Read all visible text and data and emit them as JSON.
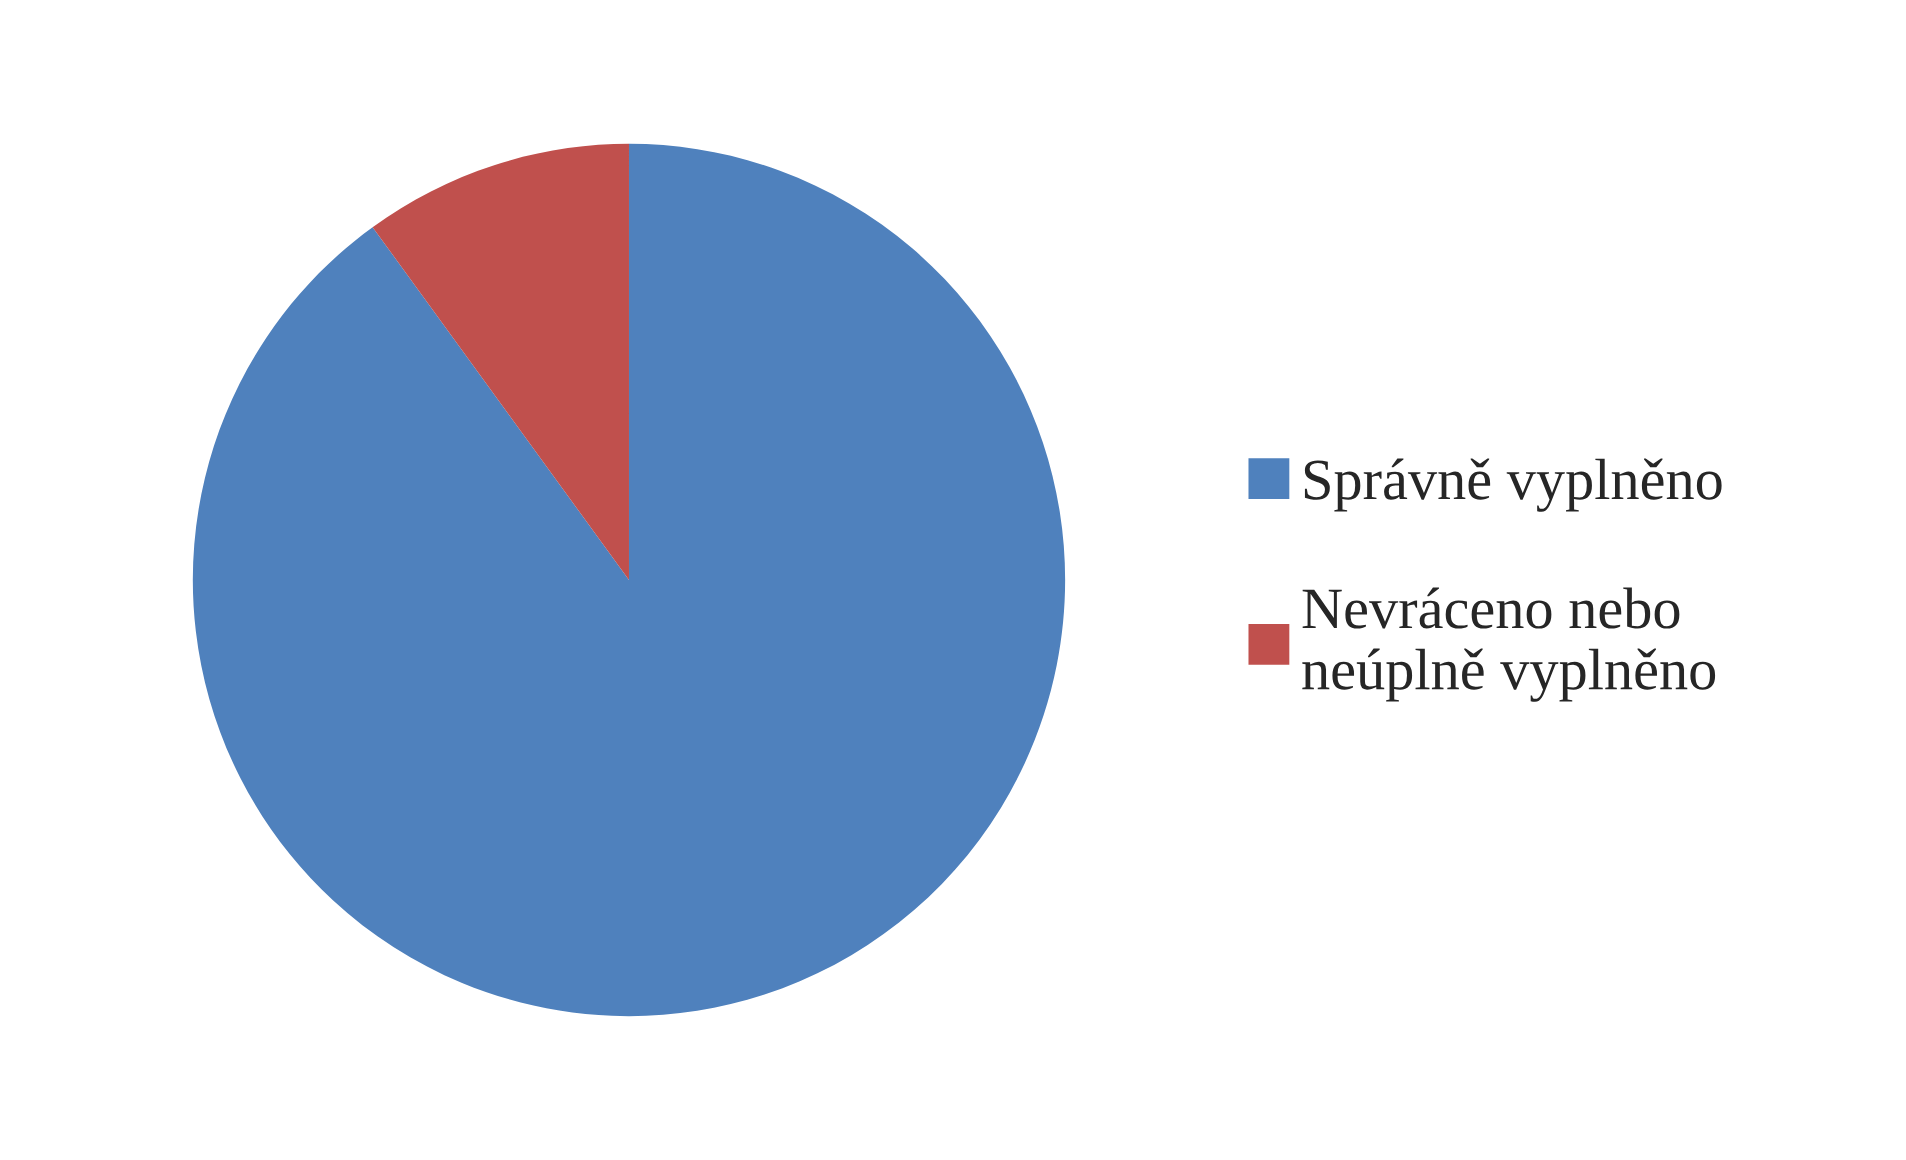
{
  "chart_data": {
    "type": "pie",
    "categories": [
      "Správně vyplněno",
      "Nevráceno nebo\nneúplně vyplněno"
    ],
    "values": [
      90,
      10
    ],
    "colors": [
      "#4f81bd",
      "#c0504d"
    ],
    "legend": "right"
  }
}
